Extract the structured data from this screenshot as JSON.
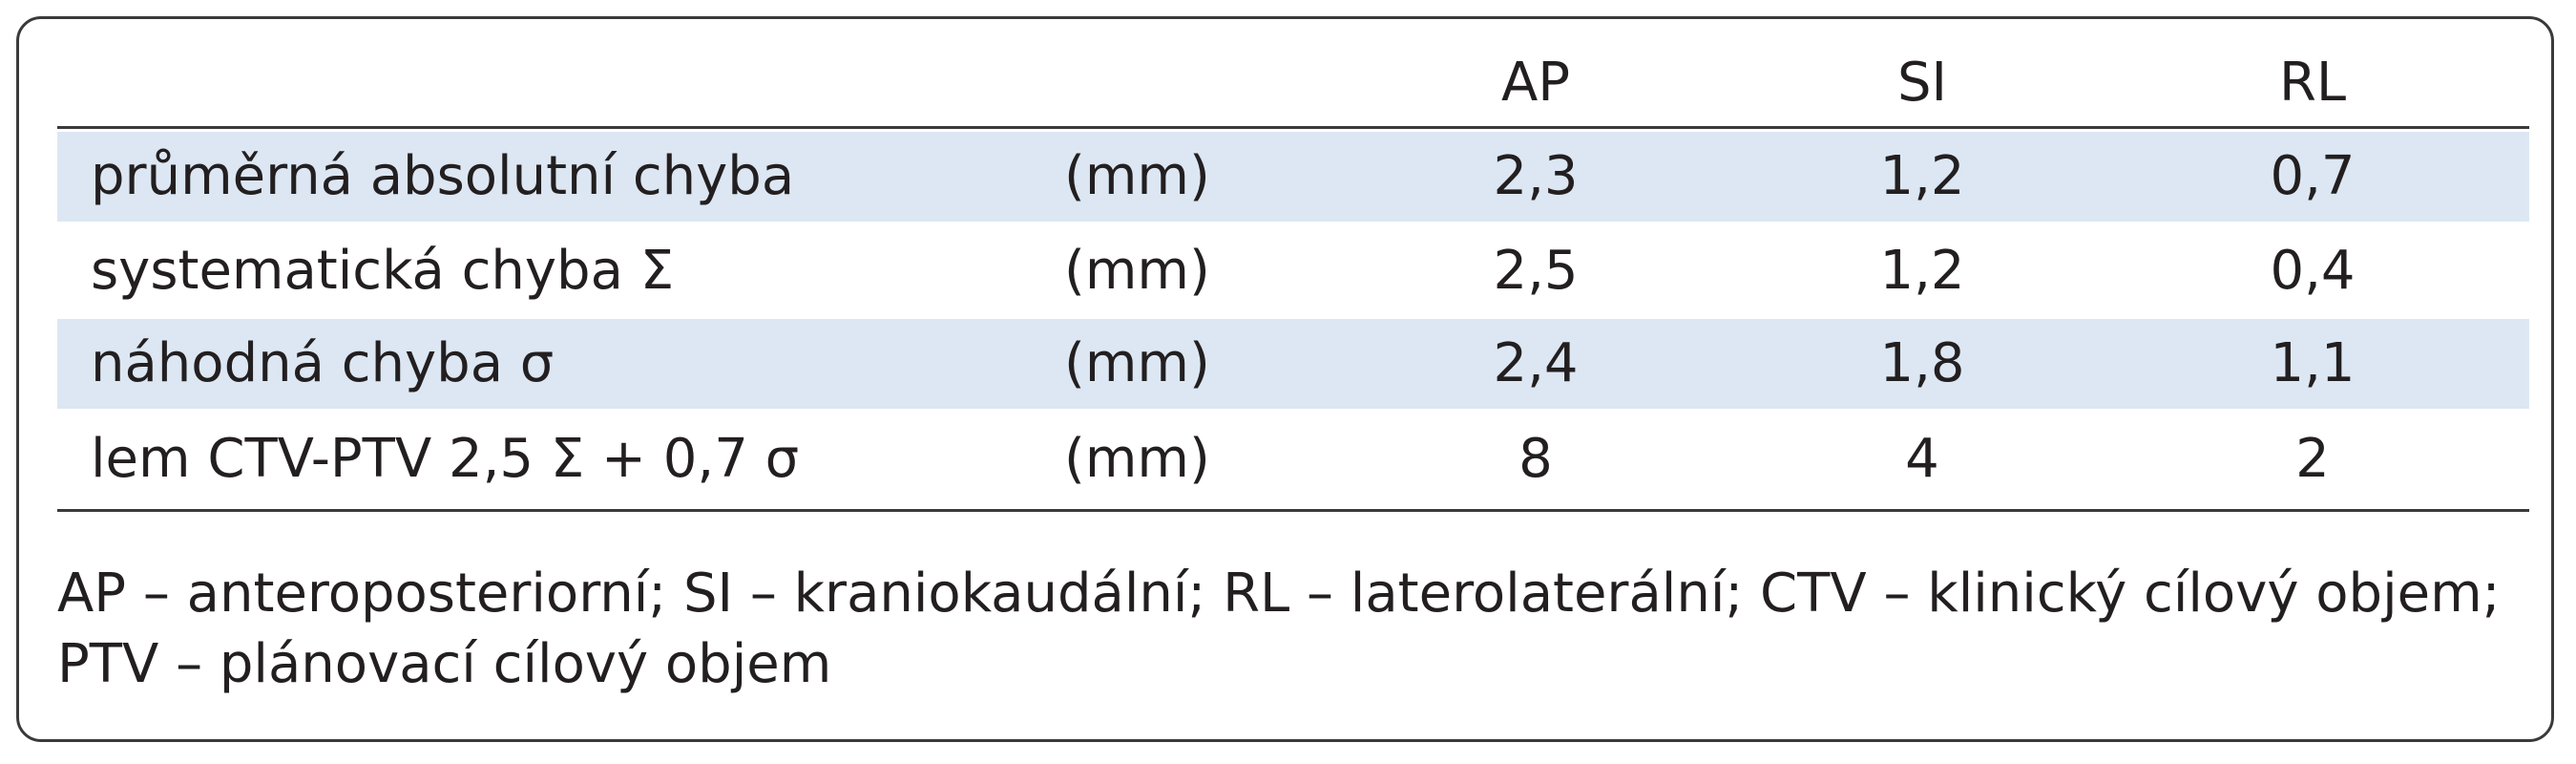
{
  "table": {
    "header": [
      "AP",
      "SI",
      "RL"
    ],
    "rows": [
      [
        "průměrná absolutní chyba",
        "(mm)",
        "2,3",
        "1,2",
        "0,7"
      ],
      [
        "systematická chyba Σ",
        "(mm)",
        "2,5",
        "1,2",
        "0,4"
      ],
      [
        "náhodná chyba σ",
        "(mm)",
        "2,4",
        "1,8",
        "1,1"
      ],
      [
        "lem CTV-PTV 2,5 Σ + 0,7 σ",
        "(mm)",
        "8",
        "4",
        "2"
      ]
    ],
    "note": "AP – anteroposteriorní; SI – kraniokaudální; RL – laterolaterální; CTV – klinický cílový objem; PTV – plánovací cílový objem"
  }
}
